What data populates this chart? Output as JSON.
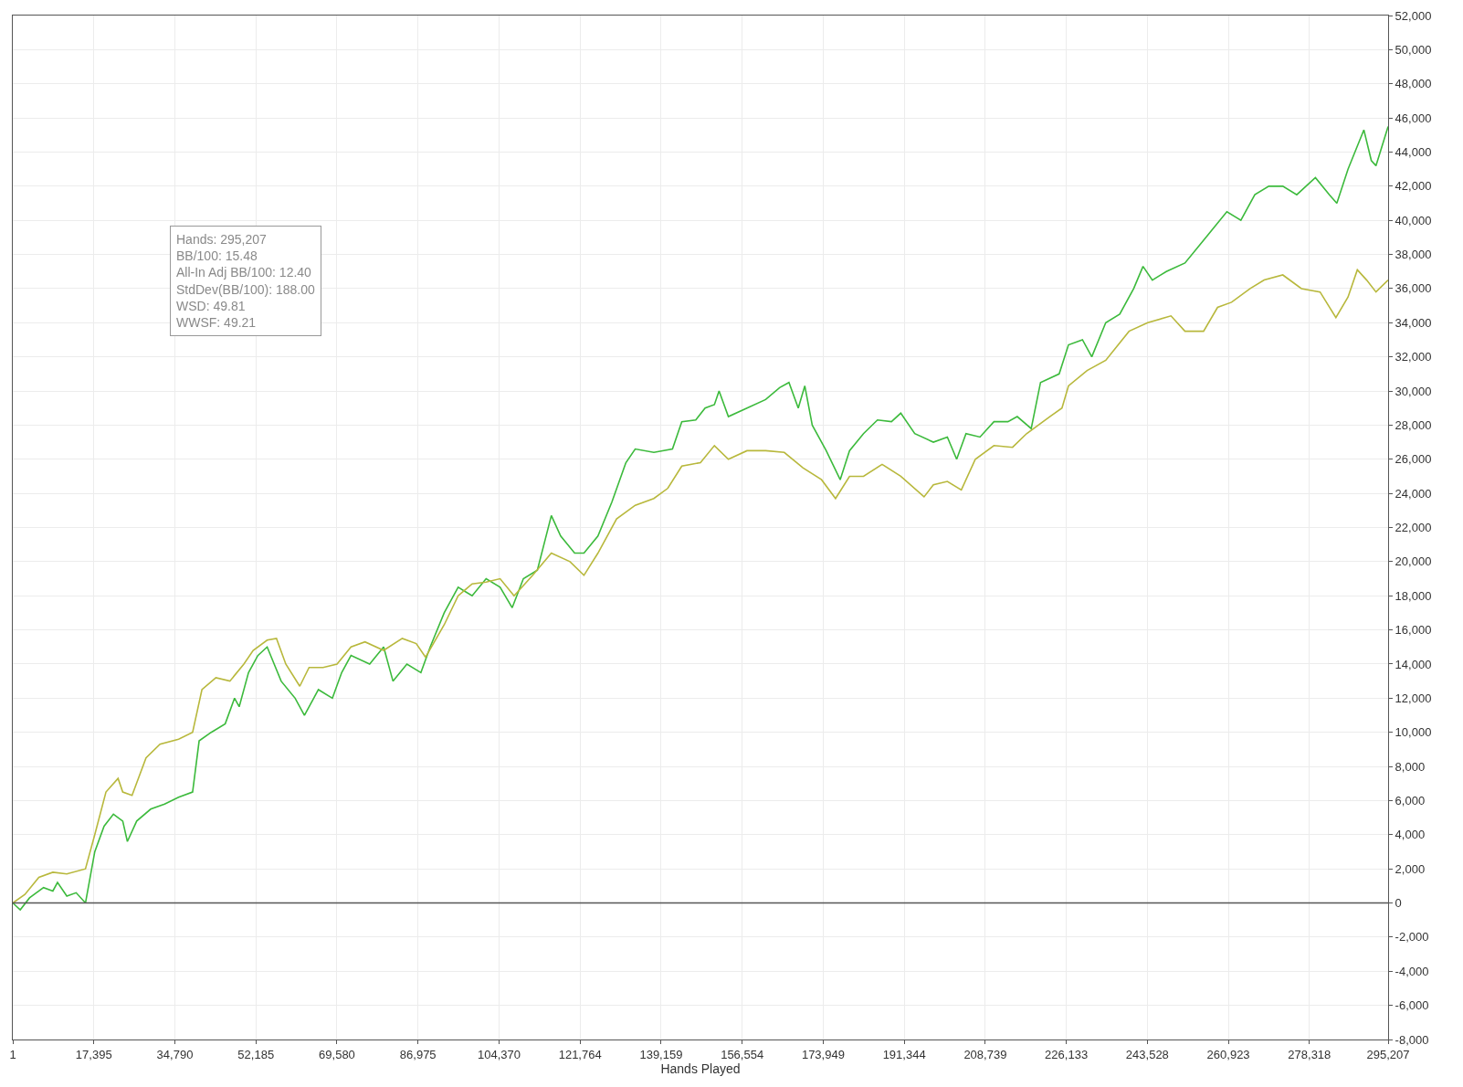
{
  "chart_data": {
    "type": "line",
    "xlabel": "Hands Played",
    "annotations": [
      "Hands: 295,207",
      "BB/100: 15.48",
      "All-In Adj BB/100: 12.40",
      "StdDev(BB/100): 188.00",
      "WSD: 49.81",
      "WWSF: 49.21"
    ],
    "xlim": [
      1,
      295207
    ],
    "xticks": [
      1,
      {
        "value": 17395,
        "label": "17,395"
      },
      {
        "value": 34790,
        "label": "34,790"
      },
      {
        "value": 52185,
        "label": "52,185"
      },
      {
        "value": 69580,
        "label": "69,580"
      },
      {
        "value": 86975,
        "label": "86,975"
      },
      {
        "value": 104370,
        "label": "104,370"
      },
      {
        "value": 121764,
        "label": "121,764"
      },
      {
        "value": 139159,
        "label": "139,159"
      },
      {
        "value": 156554,
        "label": "156,554"
      },
      {
        "value": 173949,
        "label": "173,949"
      },
      {
        "value": 191344,
        "label": "191,344"
      },
      {
        "value": 208739,
        "label": "208,739"
      },
      {
        "value": 226133,
        "label": "226,133"
      },
      {
        "value": 243528,
        "label": "243,528"
      },
      {
        "value": 260923,
        "label": "260,923"
      },
      {
        "value": 278318,
        "label": "278,318"
      },
      {
        "value": 295207,
        "label": "295,207"
      }
    ],
    "ylim": [
      -8000,
      52000
    ],
    "yticks": [
      {
        "value": -8000,
        "label": "-8,000"
      },
      {
        "value": -6000,
        "label": "-6,000"
      },
      {
        "value": -4000,
        "label": "-4,000"
      },
      {
        "value": -2000,
        "label": "-2,000"
      },
      0,
      {
        "value": 2000,
        "label": "2,000"
      },
      {
        "value": 4000,
        "label": "4,000"
      },
      {
        "value": 6000,
        "label": "6,000"
      },
      {
        "value": 8000,
        "label": "8,000"
      },
      {
        "value": 10000,
        "label": "10,000"
      },
      {
        "value": 12000,
        "label": "12,000"
      },
      {
        "value": 14000,
        "label": "14,000"
      },
      {
        "value": 16000,
        "label": "16,000"
      },
      {
        "value": 18000,
        "label": "18,000"
      },
      {
        "value": 20000,
        "label": "20,000"
      },
      {
        "value": 22000,
        "label": "22,000"
      },
      {
        "value": 24000,
        "label": "24,000"
      },
      {
        "value": 26000,
        "label": "26,000"
      },
      {
        "value": 28000,
        "label": "28,000"
      },
      {
        "value": 30000,
        "label": "30,000"
      },
      {
        "value": 32000,
        "label": "32,000"
      },
      {
        "value": 34000,
        "label": "34,000"
      },
      {
        "value": 36000,
        "label": "36,000"
      },
      {
        "value": 38000,
        "label": "38,000"
      },
      {
        "value": 40000,
        "label": "40,000"
      },
      {
        "value": 42000,
        "label": "42,000"
      },
      {
        "value": 44000,
        "label": "44,000"
      },
      {
        "value": 46000,
        "label": "46,000"
      },
      {
        "value": 48000,
        "label": "48,000"
      },
      {
        "value": 50000,
        "label": "50,000"
      },
      {
        "value": 52000,
        "label": "52,000"
      }
    ],
    "grid": true,
    "marker": "none",
    "line_style": "solid",
    "ref_lines": [
      {
        "axis": "y",
        "value": 0,
        "label": null,
        "color": "#555555"
      }
    ],
    "series": [
      {
        "color": "#3cba3c",
        "x": [
          1,
          1600,
          3600,
          6600,
          8600,
          9600,
          11600,
          13600,
          15600,
          17600,
          19600,
          21600,
          23600,
          24600,
          26600,
          29600,
          32600,
          35600,
          38600,
          40000,
          42600,
          45600,
          47600,
          48600,
          50600,
          52600,
          54600,
          57600,
          60600,
          62600,
          65600,
          68600,
          70600,
          72600,
          76600,
          79600,
          81600,
          84600,
          87600,
          89600,
          92600,
          95600,
          98600,
          101600,
          104600,
          107200,
          109600,
          112600,
          115600,
          117600,
          120600,
          122600,
          125600,
          128600,
          131600,
          133600,
          137600,
          141600,
          143600,
          146600,
          148600,
          150600,
          151600,
          153600,
          157600,
          161600,
          164600,
          166600,
          168600,
          170000,
          171600,
          174600,
          177600,
          179600,
          182600,
          185600,
          188600,
          190600,
          193600,
          197600,
          200600,
          202600,
          204600,
          207600,
          210600,
          213600,
          215600,
          218600,
          220600,
          224600,
          226600,
          229600,
          231600,
          234600,
          237600,
          240600,
          242600,
          244600,
          247600,
          251600,
          254600,
          257600,
          260600,
          263600,
          266600,
          269600,
          272600,
          275600,
          279600,
          282600,
          284200,
          286600,
          290000,
          291600,
          292600,
          295207
        ],
        "values": [
          0,
          -400,
          300,
          900,
          700,
          1200,
          400,
          600,
          0,
          3000,
          4500,
          5200,
          4800,
          3600,
          4800,
          5500,
          5800,
          6200,
          6500,
          9500,
          10000,
          10500,
          12000,
          11500,
          13500,
          14500,
          15000,
          13000,
          12000,
          11000,
          12500,
          12000,
          13500,
          14500,
          14000,
          15000,
          13000,
          14000,
          13500,
          15000,
          17000,
          18500,
          18000,
          19000,
          18500,
          17300,
          19000,
          19500,
          22700,
          21500,
          20500,
          20500,
          21500,
          23500,
          25800,
          26600,
          26400,
          26600,
          28200,
          28300,
          29000,
          29200,
          30000,
          28500,
          29000,
          29500,
          30200,
          30500,
          29000,
          30300,
          28000,
          26500,
          24800,
          26500,
          27500,
          28300,
          28200,
          28700,
          27500,
          27000,
          27300,
          26000,
          27500,
          27300,
          28200,
          28200,
          28500,
          27800,
          30500,
          31000,
          32700,
          33000,
          32000,
          34000,
          34500,
          36000,
          37300,
          36500,
          37000,
          37500,
          38500,
          39500,
          40500,
          40000,
          41500,
          42000,
          42000,
          41500,
          42500,
          41500,
          41000,
          43000,
          45300,
          43500,
          43200,
          45500
        ]
      },
      {
        "color": "#b8b83c",
        "x": [
          1,
          2600,
          5600,
          8600,
          11600,
          15600,
          17600,
          20000,
          22600,
          23600,
          25600,
          28600,
          31600,
          35600,
          38600,
          40600,
          43600,
          46600,
          49600,
          51600,
          54600,
          56600,
          58600,
          61600,
          63600,
          66600,
          69600,
          72600,
          75600,
          79600,
          83600,
          86600,
          88600,
          92600,
          95600,
          98600,
          101600,
          104600,
          107600,
          111600,
          115600,
          119600,
          122600,
          125600,
          129600,
          133600,
          137600,
          140600,
          143600,
          147600,
          150600,
          153600,
          157600,
          161600,
          165600,
          169600,
          173600,
          176600,
          179600,
          182600,
          186600,
          190600,
          195600,
          197600,
          200600,
          203600,
          206600,
          210600,
          214600,
          217600,
          222600,
          225200,
          226600,
          230600,
          234600,
          239600,
          243600,
          248600,
          251600,
          255600,
          258600,
          261600,
          265600,
          268600,
          272600,
          276600,
          280600,
          284000,
          286600,
          288600,
          290600,
          292600,
          295207
        ],
        "values": [
          0,
          500,
          1500,
          1800,
          1700,
          2000,
          4000,
          6500,
          7300,
          6500,
          6300,
          8500,
          9300,
          9600,
          10000,
          12500,
          13200,
          13000,
          14000,
          14800,
          15400,
          15500,
          14000,
          12700,
          13800,
          13800,
          14000,
          15000,
          15300,
          14800,
          15500,
          15200,
          14400,
          16300,
          18000,
          18700,
          18800,
          19000,
          18000,
          19200,
          20500,
          20000,
          19200,
          20500,
          22500,
          23300,
          23700,
          24300,
          25600,
          25800,
          26800,
          26000,
          26500,
          26500,
          26400,
          25500,
          24800,
          23700,
          25000,
          25000,
          25700,
          25000,
          23800,
          24500,
          24700,
          24200,
          26000,
          26800,
          26700,
          27500,
          28500,
          29000,
          30300,
          31200,
          31800,
          33500,
          34000,
          34400,
          33500,
          33500,
          34900,
          35200,
          36000,
          36500,
          36800,
          36000,
          35800,
          34300,
          35500,
          37100,
          36500,
          35800,
          36500
        ]
      }
    ]
  }
}
